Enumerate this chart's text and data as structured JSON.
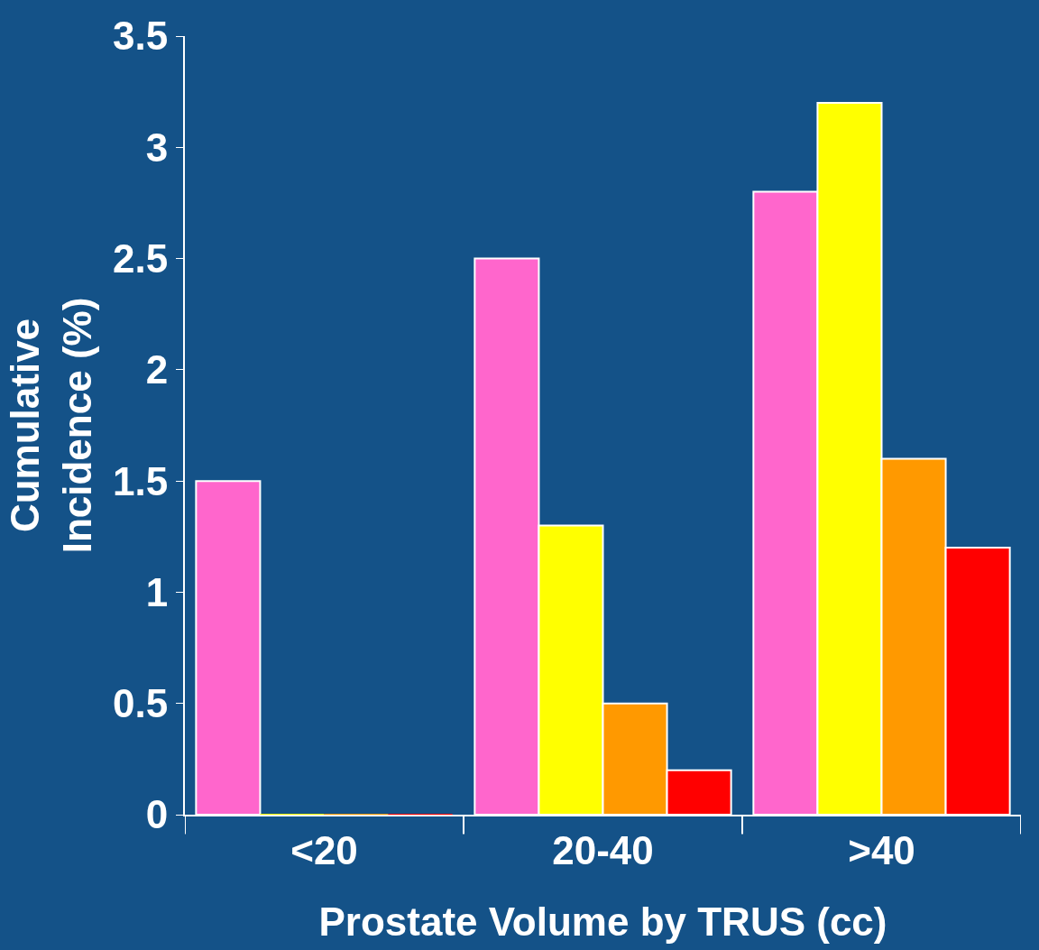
{
  "chart_data": {
    "type": "bar",
    "xlabel": "Prostate Volume by TRUS (cc)",
    "ylabel": "Cumulative\nIncidence (%)",
    "categories": [
      "<20",
      "20-40",
      ">40"
    ],
    "series": [
      {
        "color": "#ff66cc",
        "values": [
          1.5,
          2.5,
          2.8
        ]
      },
      {
        "color": "#ffff00",
        "values": [
          0,
          1.3,
          3.2
        ]
      },
      {
        "color": "#ff9900",
        "values": [
          0,
          0.5,
          1.6
        ]
      },
      {
        "color": "#ff0000",
        "values": [
          0,
          0.2,
          1.2
        ]
      }
    ],
    "ylim": [
      0,
      3.5
    ],
    "yticks": [
      0,
      0.5,
      1,
      1.5,
      2,
      2.5,
      3,
      3.5
    ],
    "grid": false,
    "legend": false
  }
}
